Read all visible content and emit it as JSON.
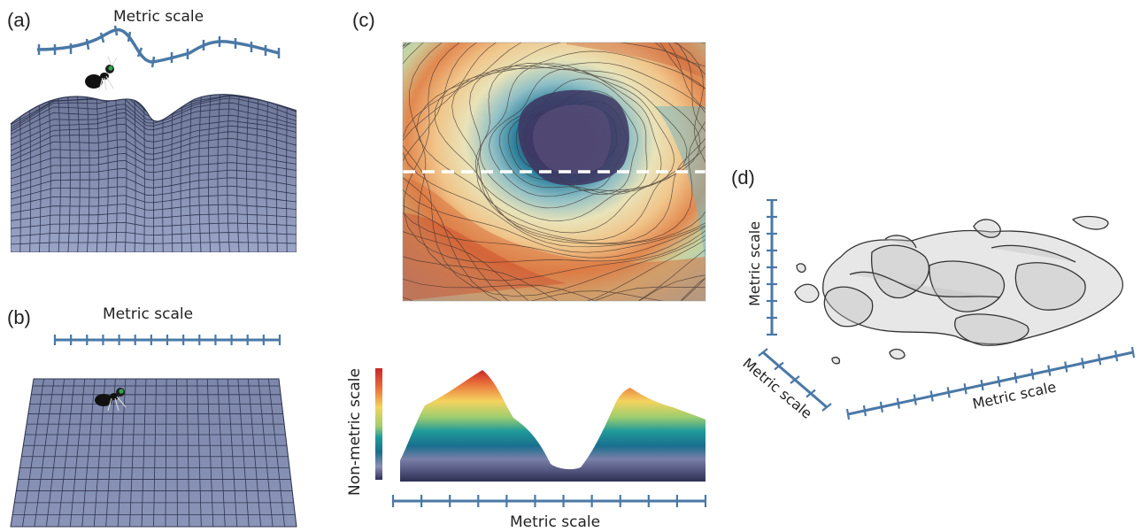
{
  "panels": {
    "a": {
      "letter": "(a)",
      "scale_label": "Metric scale"
    },
    "b": {
      "letter": "(b)",
      "scale_label": "Metric scale"
    },
    "c": {
      "letter": "(c)",
      "x_label": "Metric scale",
      "y_label": "Non-metric scale"
    },
    "d": {
      "letter": "(d)",
      "y_label": "Metric scale",
      "depth_label": "Metric scale",
      "x_label": "Metric scale"
    }
  },
  "colors": {
    "axis": "#4a78a6",
    "mesh_fill": "#8a94b8",
    "mesh_line": "#2e3550",
    "cut_line": "#ffffff"
  },
  "icons": [
    "ant-icon"
  ]
}
